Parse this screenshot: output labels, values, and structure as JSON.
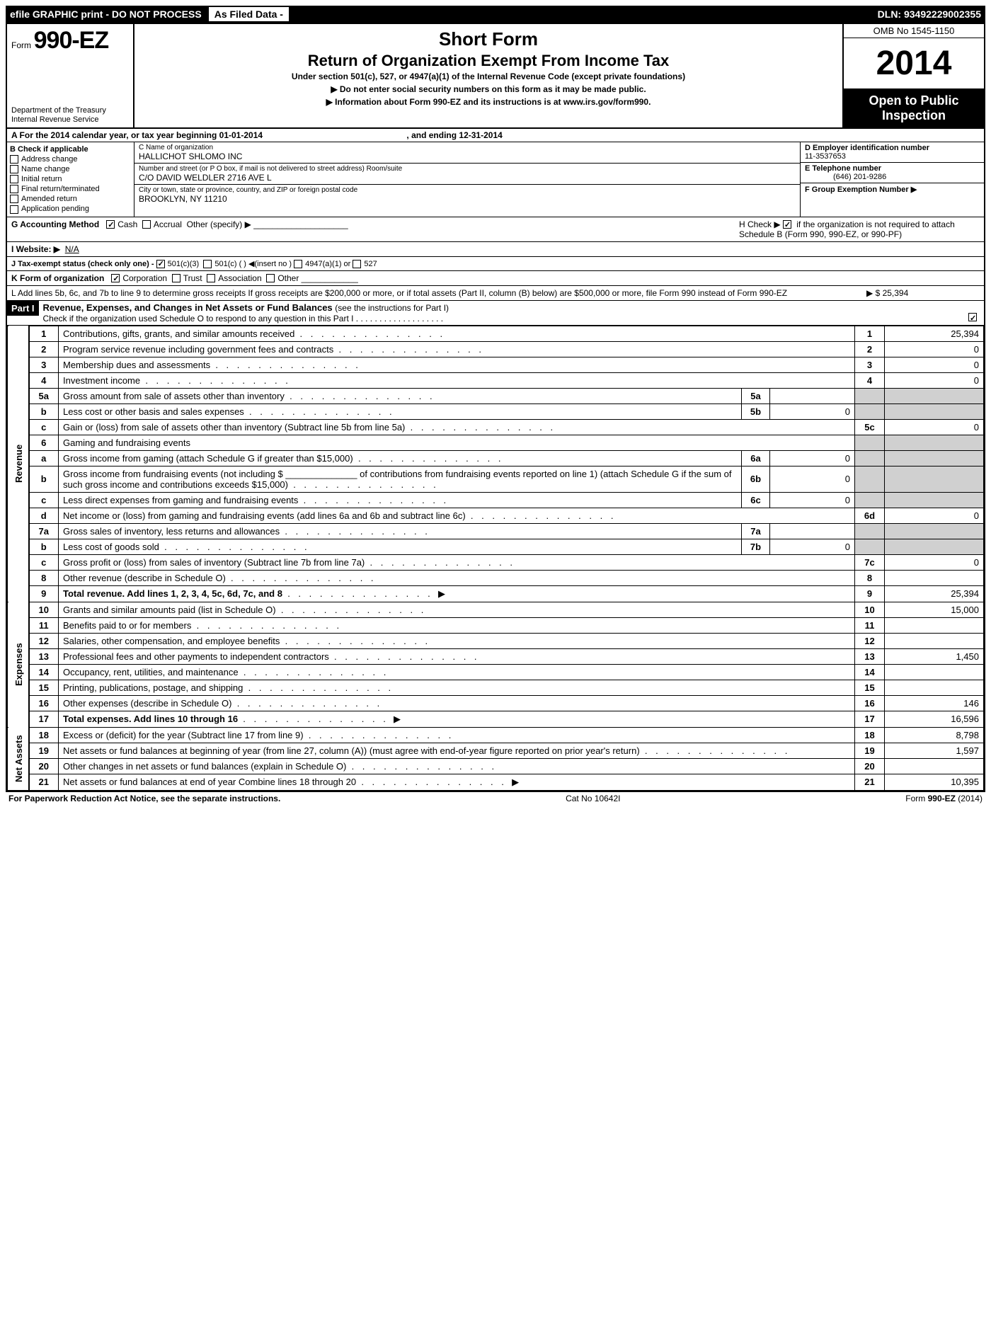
{
  "topbar": {
    "efile": "efile GRAPHIC print - DO NOT PROCESS",
    "asfiled": "As Filed Data -",
    "dln": "DLN: 93492229002355"
  },
  "header": {
    "form_prefix": "Form",
    "form_number": "990-EZ",
    "dept1": "Department of the Treasury",
    "dept2": "Internal Revenue Service",
    "title1": "Short Form",
    "title2": "Return of Organization Exempt From Income Tax",
    "subtitle": "Under section 501(c), 527, or 4947(a)(1) of the Internal Revenue Code (except private foundations)",
    "note1": "▶ Do not enter social security numbers on this form as it may be made public.",
    "note2_pre": "▶ Information about Form 990-EZ and its instructions is at ",
    "note2_link": "www.irs.gov/form990",
    "note2_post": ".",
    "omb": "OMB No 1545-1150",
    "year": "2014",
    "open": "Open to Public Inspection"
  },
  "sectionA": {
    "a_line": "A  For the 2014 calendar year, or tax year beginning 01-01-2014",
    "a_end": ", and ending 12-31-2014",
    "b_label": "B  Check if applicable",
    "b_items": [
      "Address change",
      "Name change",
      "Initial return",
      "Final return/terminated",
      "Amended return",
      "Application pending"
    ],
    "c_label": "C Name of organization",
    "c_name": "HALLICHOT SHLOMO INC",
    "c_street_label": "Number and street (or P O box, if mail is not delivered to street address) Room/suite",
    "c_street": "C/O DAVID WELDLER 2716 AVE L",
    "c_city_label": "City or town, state or province, country, and ZIP or foreign postal code",
    "c_city": "BROOKLYN, NY  11210",
    "d_label": "D Employer identification number",
    "d_val": "11-3537653",
    "e_label": "E Telephone number",
    "e_val": "(646) 201-9286",
    "f_label": "F Group Exemption Number   ▶"
  },
  "info": {
    "g_label": "G Accounting Method",
    "g_cash": "Cash",
    "g_accrual": "Accrual",
    "g_other": "Other (specify) ▶",
    "h_text": "H  Check ▶",
    "h_text2": "if the organization is not required to attach Schedule B (Form 990, 990-EZ, or 990-PF)",
    "i_label": "I Website: ▶",
    "i_val": "N/A",
    "j_label": "J Tax-exempt status (check only one) -",
    "j_501c3": "501(c)(3)",
    "j_501c": "501(c) (   ) ◀(insert no )",
    "j_4947": "4947(a)(1) or",
    "j_527": "527",
    "k_label": "K Form of organization",
    "k_corp": "Corporation",
    "k_trust": "Trust",
    "k_assoc": "Association",
    "k_other": "Other",
    "l_text": "L Add lines 5b, 6c, and 7b to line 9 to determine gross receipts  If gross receipts are $200,000 or more, or if total assets (Part II, column (B) below) are $500,000 or more, file Form 990 instead of Form 990-EZ",
    "l_val": "▶ $ 25,394"
  },
  "part1": {
    "label": "Part I",
    "title": "Revenue, Expenses, and Changes in Net Assets or Fund Balances",
    "title_sub": "(see the instructions for Part I)",
    "check_line": "Check if the organization used Schedule O to respond to any question in this Part I  . . . . . . . . . . . . . . . . . . ."
  },
  "sections": {
    "revenue": "Revenue",
    "expenses": "Expenses",
    "netassets": "Net Assets"
  },
  "lines": [
    {
      "n": "1",
      "d": "Contributions, gifts, grants, and similar amounts received",
      "r": "1",
      "v": "25,394"
    },
    {
      "n": "2",
      "d": "Program service revenue including government fees and contracts",
      "r": "2",
      "v": "0"
    },
    {
      "n": "3",
      "d": "Membership dues and assessments",
      "r": "3",
      "v": "0"
    },
    {
      "n": "4",
      "d": "Investment income",
      "r": "4",
      "v": "0"
    },
    {
      "n": "5a",
      "d": "Gross amount from sale of assets other than inventory",
      "sn": "5a",
      "sv": ""
    },
    {
      "n": "b",
      "d": "Less  cost or other basis and sales expenses",
      "sn": "5b",
      "sv": "0"
    },
    {
      "n": "c",
      "d": "Gain or (loss) from sale of assets other than inventory (Subtract line 5b from line 5a)",
      "r": "5c",
      "v": "0"
    },
    {
      "n": "6",
      "d": "Gaming and fundraising events"
    },
    {
      "n": "a",
      "d": "Gross income from gaming (attach Schedule G if greater than $15,000)",
      "sn": "6a",
      "sv": "0"
    },
    {
      "n": "b",
      "d": "Gross income from fundraising events (not including $ ______________ of contributions from fundraising events reported on line 1) (attach Schedule G if the sum of such gross income and contributions exceeds $15,000)",
      "sn": "6b",
      "sv": "0"
    },
    {
      "n": "c",
      "d": "Less  direct expenses from gaming and fundraising events",
      "sn": "6c",
      "sv": "0"
    },
    {
      "n": "d",
      "d": "Net income or (loss) from gaming and fundraising events (add lines 6a and 6b and subtract line 6c)",
      "r": "6d",
      "v": "0"
    },
    {
      "n": "7a",
      "d": "Gross sales of inventory, less returns and allowances",
      "sn": "7a",
      "sv": ""
    },
    {
      "n": "b",
      "d": "Less  cost of goods sold",
      "sn": "7b",
      "sv": "0"
    },
    {
      "n": "c",
      "d": "Gross profit or (loss) from sales of inventory (Subtract line 7b from line 7a)",
      "r": "7c",
      "v": "0"
    },
    {
      "n": "8",
      "d": "Other revenue (describe in Schedule O)",
      "r": "8",
      "v": ""
    },
    {
      "n": "9",
      "d": "Total revenue. Add lines 1, 2, 3, 4, 5c, 6d, 7c, and 8",
      "r": "9",
      "v": "25,394",
      "bold": true,
      "arrow": true
    }
  ],
  "expLines": [
    {
      "n": "10",
      "d": "Grants and similar amounts paid (list in Schedule O)",
      "r": "10",
      "v": "15,000"
    },
    {
      "n": "11",
      "d": "Benefits paid to or for members",
      "r": "11",
      "v": ""
    },
    {
      "n": "12",
      "d": "Salaries, other compensation, and employee benefits",
      "r": "12",
      "v": ""
    },
    {
      "n": "13",
      "d": "Professional fees and other payments to independent contractors",
      "r": "13",
      "v": "1,450"
    },
    {
      "n": "14",
      "d": "Occupancy, rent, utilities, and maintenance",
      "r": "14",
      "v": ""
    },
    {
      "n": "15",
      "d": "Printing, publications, postage, and shipping",
      "r": "15",
      "v": ""
    },
    {
      "n": "16",
      "d": "Other expenses (describe in Schedule O)",
      "r": "16",
      "v": "146"
    },
    {
      "n": "17",
      "d": "Total expenses. Add lines 10 through 16",
      "r": "17",
      "v": "16,596",
      "bold": true,
      "arrow": true
    }
  ],
  "netLines": [
    {
      "n": "18",
      "d": "Excess or (deficit) for the year (Subtract line 17 from line 9)",
      "r": "18",
      "v": "8,798"
    },
    {
      "n": "19",
      "d": "Net assets or fund balances at beginning of year (from line 27, column (A)) (must agree with end-of-year figure reported on prior year's return)",
      "r": "19",
      "v": "1,597"
    },
    {
      "n": "20",
      "d": "Other changes in net assets or fund balances (explain in Schedule O)",
      "r": "20",
      "v": ""
    },
    {
      "n": "21",
      "d": "Net assets or fund balances at end of year  Combine lines 18 through 20",
      "r": "21",
      "v": "10,395",
      "arrow": true
    }
  ],
  "footer": {
    "left": "For Paperwork Reduction Act Notice, see the separate instructions.",
    "mid": "Cat No 10642I",
    "right": "Form 990-EZ (2014)"
  }
}
